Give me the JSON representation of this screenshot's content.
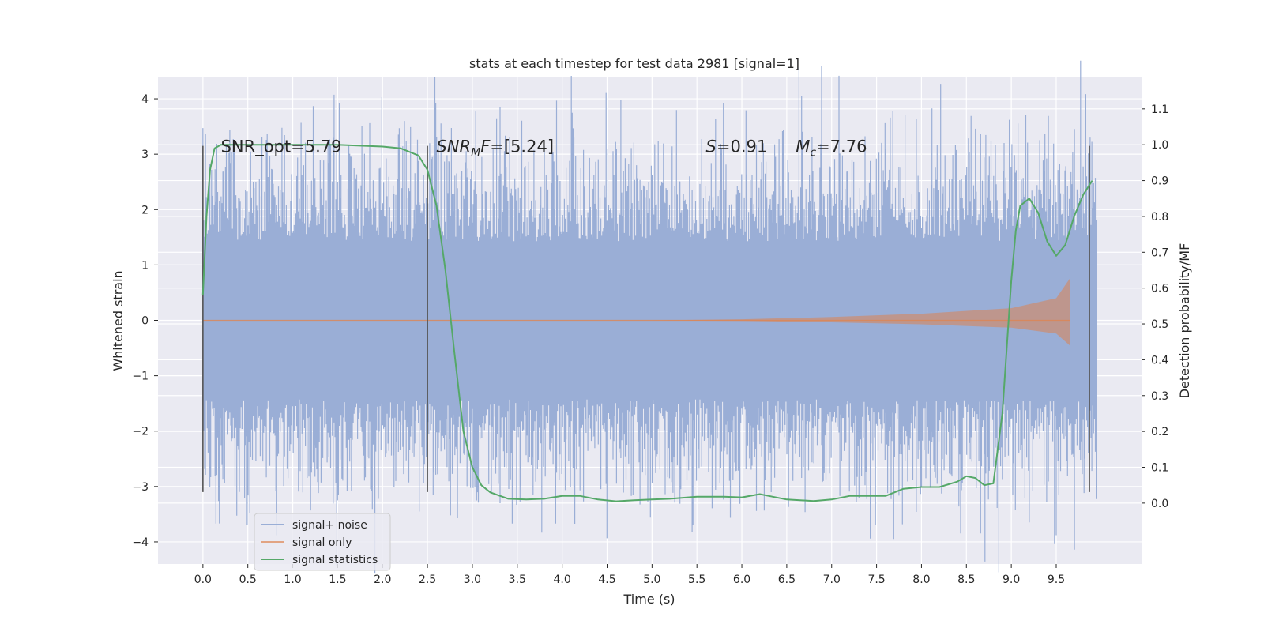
{
  "chart_data": {
    "type": "line",
    "title": "stats at each timestep for test data 2981 [signal=1]",
    "xlabel": "Time (s)",
    "ylabel": "Whitened strain",
    "y2label": "Detection probability/MF",
    "xlim": [
      -0.5,
      10.45
    ],
    "ylim": [
      -4.4,
      4.4
    ],
    "y2lim": [
      -0.17,
      1.19
    ],
    "xticks": [
      0.0,
      0.5,
      1.0,
      1.5,
      2.0,
      2.5,
      3.0,
      3.5,
      4.0,
      4.5,
      5.0,
      5.5,
      6.0,
      6.5,
      7.0,
      7.5,
      8.0,
      8.5,
      9.0,
      9.5
    ],
    "yticks": [
      -4,
      -3,
      -2,
      -1,
      0,
      1,
      2,
      3,
      4
    ],
    "y2ticks": [
      0.0,
      0.1,
      0.2,
      0.3,
      0.4,
      0.5,
      0.6,
      0.7,
      0.8,
      0.9,
      1.0,
      1.1
    ],
    "grid": true,
    "legend_position": "bottom-left",
    "colors": {
      "background": "#eaeaf2",
      "noise": "#9aaed6",
      "signal": "#dd8452",
      "stats": "#55a868",
      "vlines": "#555555"
    },
    "series": [
      {
        "name": "signal+ noise",
        "kind": "noise-band",
        "x_range": [
          0.0,
          9.95
        ],
        "envelope": {
          "q_low": -1.25,
          "q_high": 1.3,
          "typical_peak": 2.6
        }
      },
      {
        "name": "signal only",
        "kind": "chirp",
        "x_range": [
          0.0,
          9.65
        ],
        "amplitude_points": [
          [
            0.0,
            0.0
          ],
          [
            5.0,
            0.0
          ],
          [
            6.0,
            0.02
          ],
          [
            7.0,
            0.06
          ],
          [
            8.0,
            0.12
          ],
          [
            9.0,
            0.22
          ],
          [
            9.5,
            0.4
          ],
          [
            9.65,
            0.75
          ]
        ]
      },
      {
        "name": "signal statistics",
        "kind": "line",
        "axis": "y2",
        "x": [
          0.0,
          0.04,
          0.08,
          0.13,
          0.2,
          0.3,
          0.5,
          1.0,
          1.5,
          2.0,
          2.2,
          2.4,
          2.5,
          2.6,
          2.7,
          2.8,
          2.9,
          3.0,
          3.1,
          3.2,
          3.4,
          3.6,
          3.8,
          4.0,
          4.2,
          4.4,
          4.6,
          4.8,
          5.0,
          5.2,
          5.5,
          5.8,
          6.0,
          6.2,
          6.3,
          6.5,
          6.8,
          7.0,
          7.2,
          7.4,
          7.6,
          7.8,
          8.0,
          8.2,
          8.4,
          8.5,
          8.6,
          8.7,
          8.8,
          8.9,
          9.0,
          9.05,
          9.1,
          9.2,
          9.3,
          9.4,
          9.5,
          9.6,
          9.7,
          9.8,
          9.9
        ],
        "values": [
          0.58,
          0.8,
          0.93,
          0.99,
          1.0,
          1.0,
          1.0,
          1.0,
          1.0,
          0.995,
          0.99,
          0.97,
          0.93,
          0.83,
          0.65,
          0.42,
          0.2,
          0.1,
          0.05,
          0.03,
          0.012,
          0.01,
          0.012,
          0.02,
          0.02,
          0.01,
          0.005,
          0.008,
          0.01,
          0.012,
          0.018,
          0.018,
          0.016,
          0.025,
          0.02,
          0.01,
          0.006,
          0.01,
          0.02,
          0.02,
          0.02,
          0.04,
          0.045,
          0.045,
          0.06,
          0.075,
          0.07,
          0.05,
          0.055,
          0.25,
          0.62,
          0.76,
          0.83,
          0.85,
          0.81,
          0.73,
          0.69,
          0.72,
          0.8,
          0.86,
          0.9
        ]
      }
    ],
    "vlines_x": [
      0.0,
      2.5,
      9.87
    ],
    "vlines_range": [
      -3.1,
      3.15
    ],
    "annotations": [
      {
        "text": "SNR_opt=5.79",
        "x": 0.2,
        "y": 3.15
      },
      {
        "text": "=[5.24]",
        "math_prefix": "SNR",
        "sub": "M",
        "math_suffix": "F",
        "x": 2.6,
        "y": 3.15
      },
      {
        "text": "=0.91",
        "math_prefix": "S",
        "x": 5.6,
        "y": 3.15
      },
      {
        "text": "=7.76",
        "math_prefix": "M",
        "sub": "c",
        "x": 6.6,
        "y": 3.15
      }
    ]
  }
}
